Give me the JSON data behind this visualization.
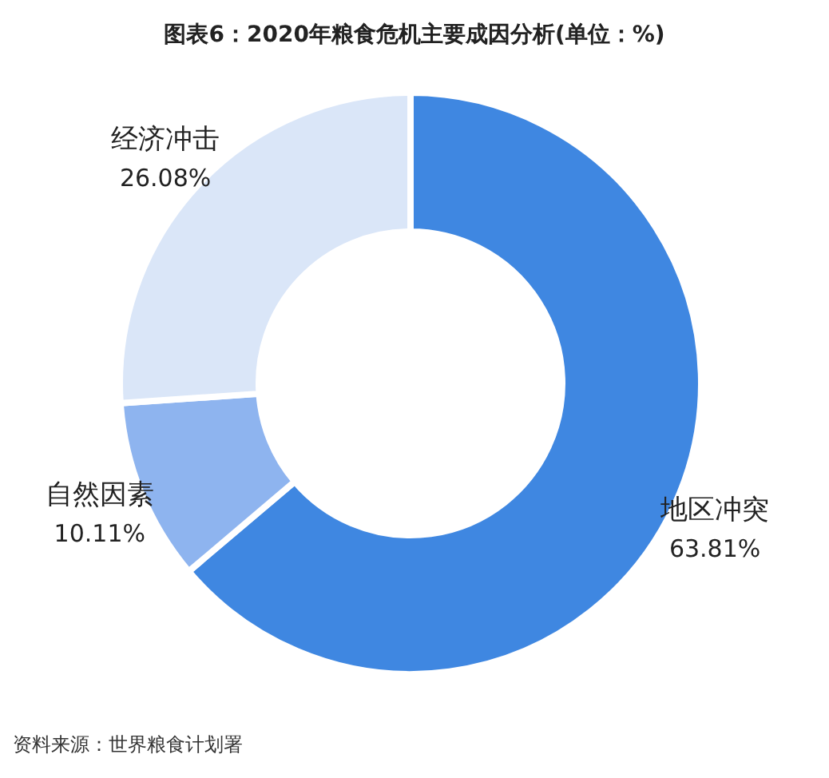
{
  "chart_data": {
    "type": "donut",
    "title": "图表6：2020年粮食危机主要成因分析(单位：%)",
    "categories": [
      "地区冲突",
      "自然因素",
      "经济冲击"
    ],
    "values": [
      63.81,
      10.11,
      26.08
    ],
    "value_labels": [
      "63.81%",
      "10.11%",
      "26.08%"
    ],
    "colors": [
      "#3f87e1",
      "#8eb4ef",
      "#dae6f8"
    ],
    "annotations": [
      "资料来源：世界粮食计划署"
    ]
  }
}
